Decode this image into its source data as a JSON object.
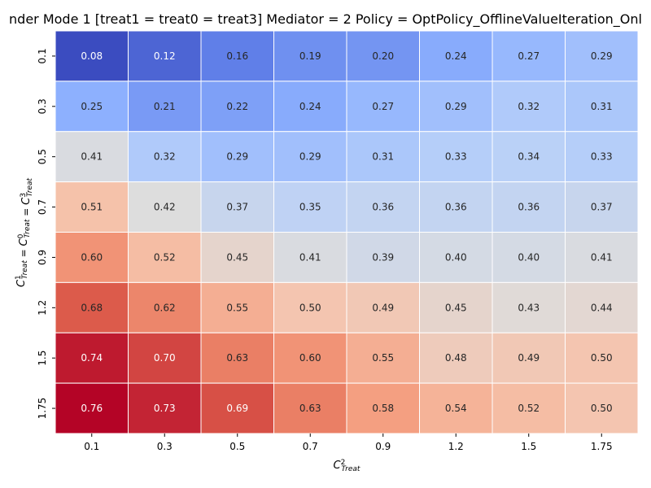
{
  "chart_data": {
    "type": "heatmap",
    "title": "nder Mode 1 [treat1 = treat0 = treat3] Mediator = 2 Policy = OptPolicy_OfflineValueIteration_Onl",
    "xlabel": "C²Treat",
    "ylabel": "C¹Treat = C⁰Treat = C³Treat",
    "x_categories": [
      "0.1",
      "0.3",
      "0.5",
      "0.7",
      "0.9",
      "1.2",
      "1.5",
      "1.75"
    ],
    "y_categories": [
      "0.1",
      "0.3",
      "0.5",
      "0.7",
      "0.9",
      "1.2",
      "1.5",
      "1.75"
    ],
    "values": [
      [
        0.08,
        0.12,
        0.16,
        0.19,
        0.2,
        0.24,
        0.27,
        0.29
      ],
      [
        0.25,
        0.21,
        0.22,
        0.24,
        0.27,
        0.29,
        0.32,
        0.31
      ],
      [
        0.41,
        0.32,
        0.29,
        0.29,
        0.31,
        0.33,
        0.34,
        0.33
      ],
      [
        0.51,
        0.42,
        0.37,
        0.35,
        0.36,
        0.36,
        0.36,
        0.37
      ],
      [
        0.6,
        0.52,
        0.45,
        0.41,
        0.39,
        0.4,
        0.4,
        0.41
      ],
      [
        0.68,
        0.62,
        0.55,
        0.5,
        0.49,
        0.45,
        0.43,
        0.44
      ],
      [
        0.74,
        0.7,
        0.63,
        0.6,
        0.55,
        0.48,
        0.49,
        0.5
      ],
      [
        0.76,
        0.73,
        0.69,
        0.63,
        0.58,
        0.54,
        0.52,
        0.5
      ]
    ],
    "colormap": "coolwarm",
    "vmin": 0.08,
    "vmax": 0.76,
    "colorbar": false,
    "grid": false,
    "cell_border_color": "#ffffff"
  }
}
